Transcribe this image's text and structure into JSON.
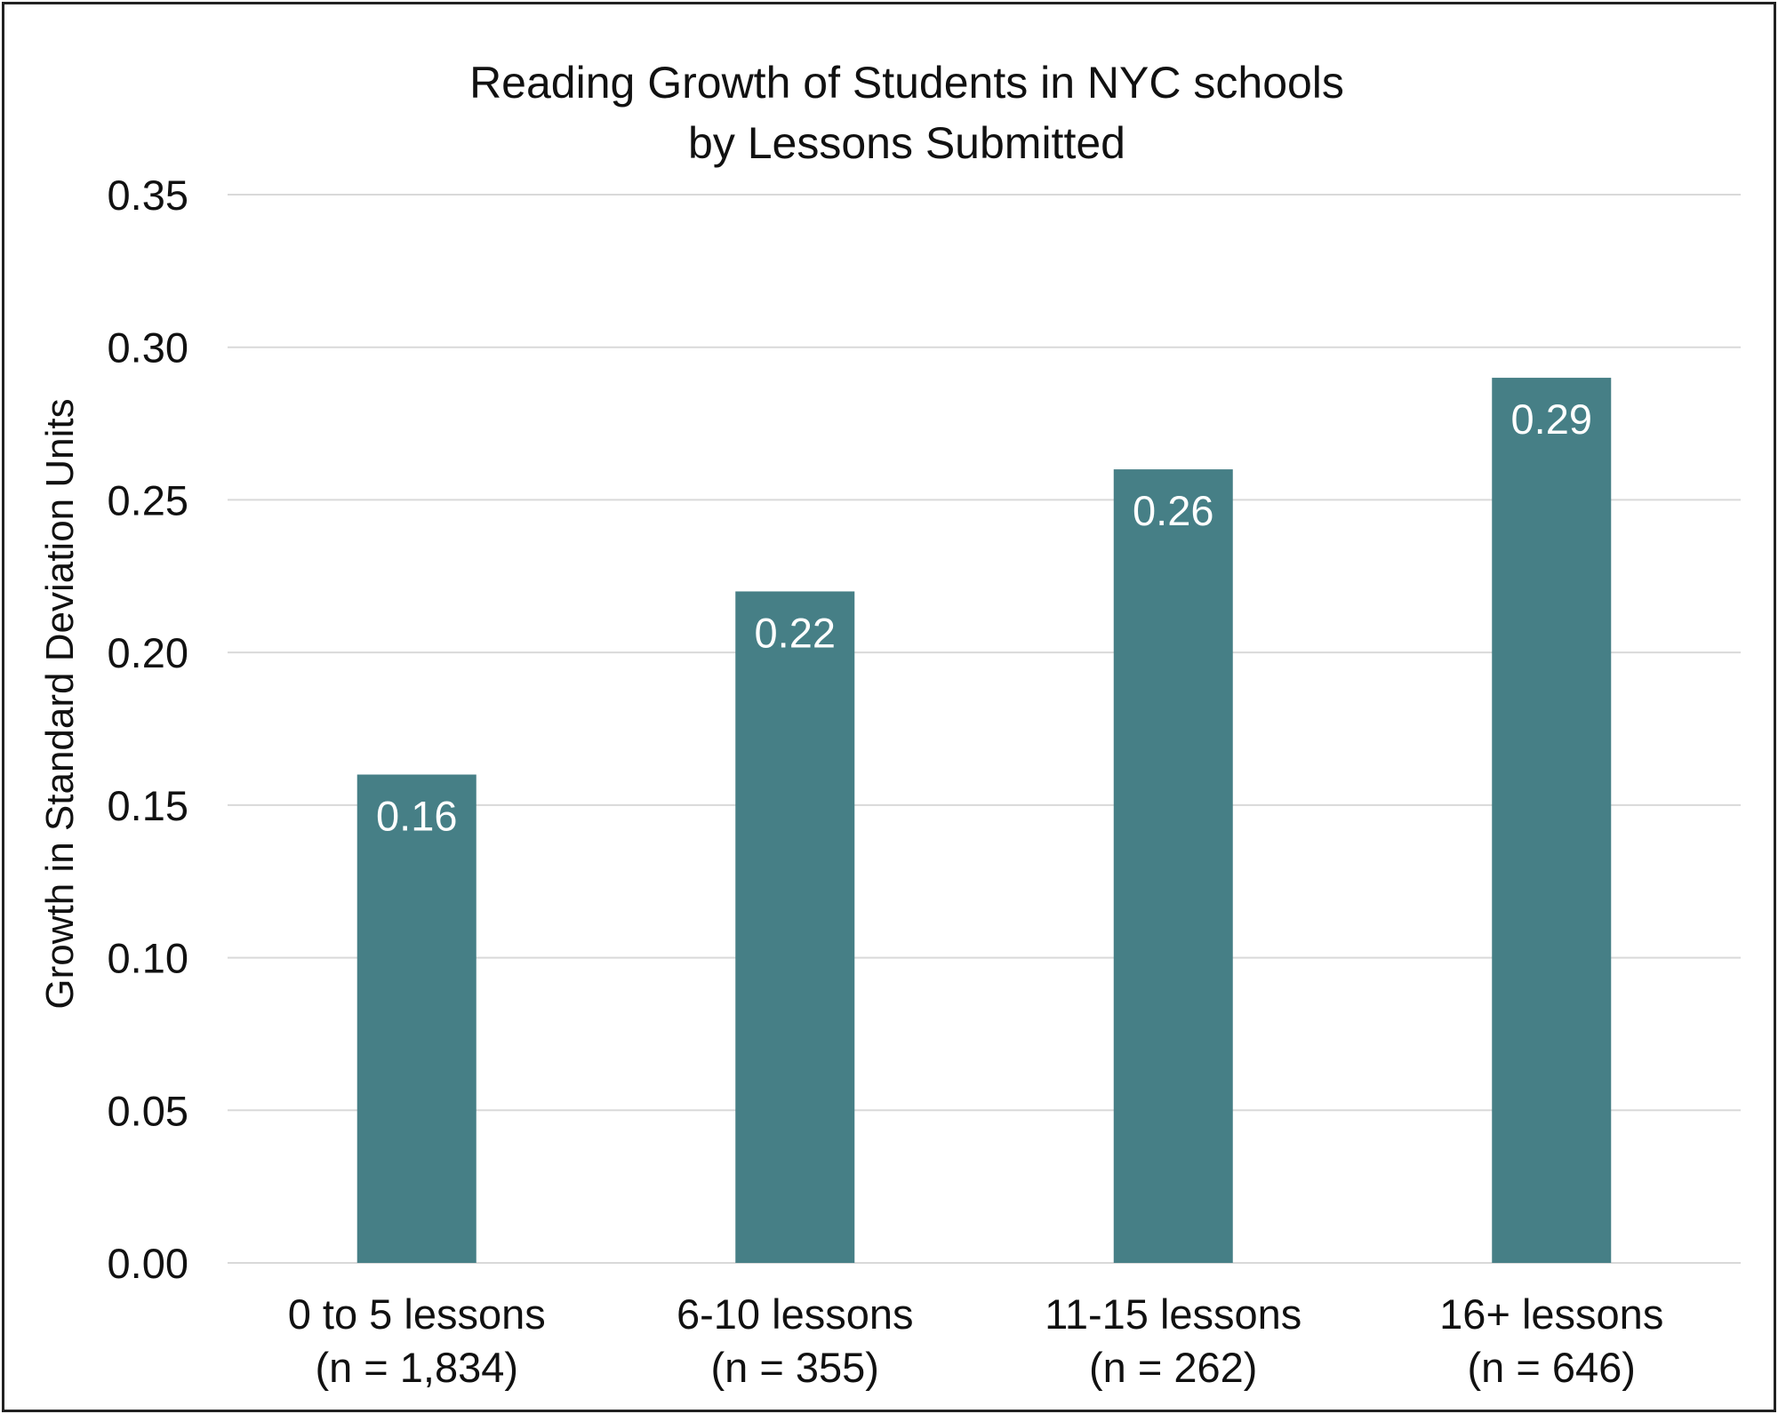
{
  "chart_data": {
    "type": "bar",
    "title": "Reading Growth of Students in NYC schools",
    "subtitle": "by Lessons Submitted",
    "xlabel": "",
    "ylabel": "Growth in Standard Deviation Units",
    "categories": [
      "0 to 5 lessons",
      "6-10 lessons",
      "11-15 lessons",
      "16+ lessons"
    ],
    "category_notes": [
      "(n = 1,834)",
      "(n = 355)",
      "(n = 262)",
      "(n = 646)"
    ],
    "values": [
      0.16,
      0.22,
      0.26,
      0.29
    ],
    "data_labels": [
      "0.16",
      "0.22",
      "0.26",
      "0.29"
    ],
    "ylim": [
      0,
      0.35
    ],
    "yticks": [
      0,
      0.05,
      0.1,
      0.15,
      0.2,
      0.25,
      0.3,
      0.35
    ],
    "ytick_labels": [
      "0.00",
      "0.05",
      "0.10",
      "0.15",
      "0.20",
      "0.25",
      "0.30",
      "0.35"
    ],
    "grid": true,
    "legend": "none",
    "bar_color": "#467f86"
  }
}
